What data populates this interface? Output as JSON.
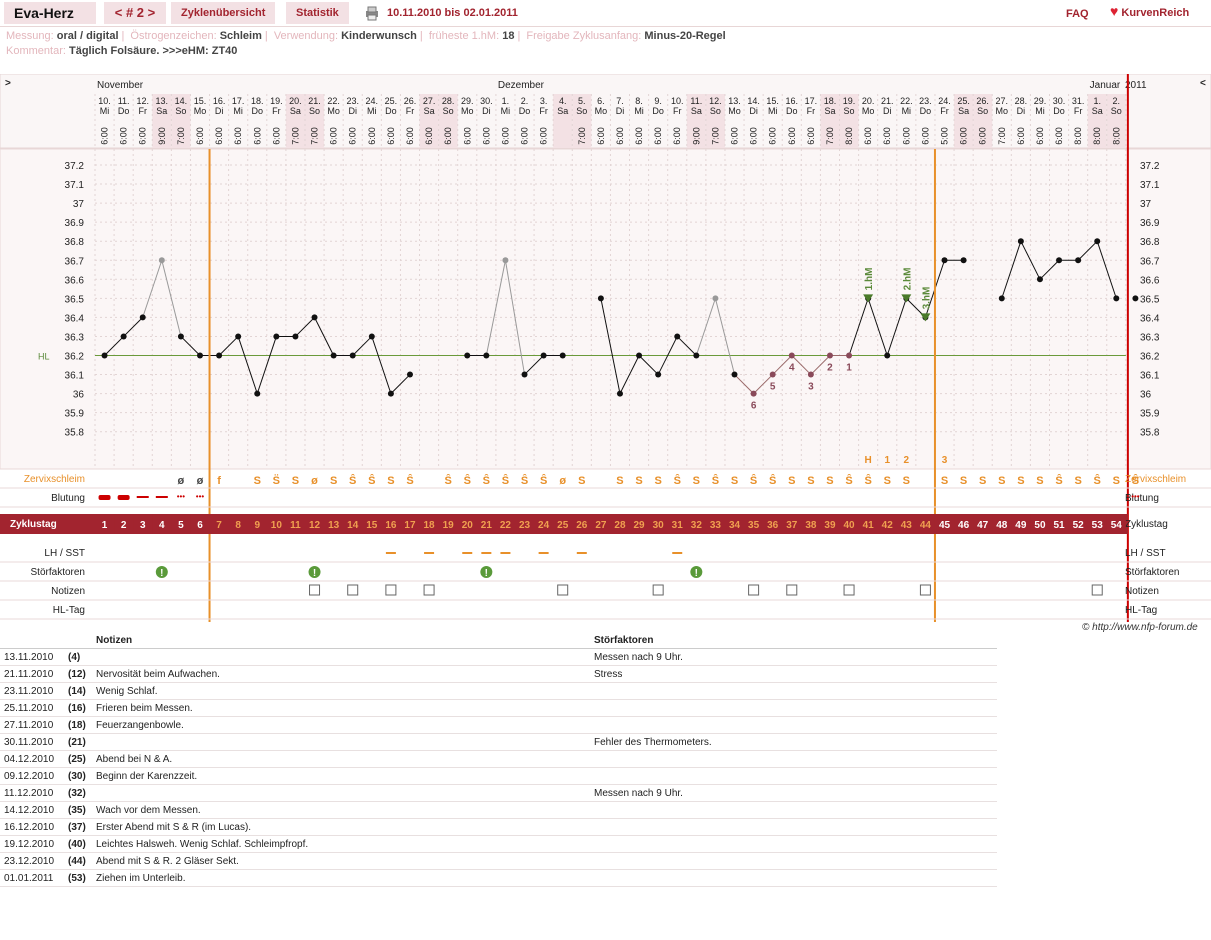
{
  "app": {
    "title": "Eva-Herz",
    "nav": "< # 2 >",
    "tab_overview": "Zyklenübersicht",
    "tab_stats": "Statistik",
    "date_range": "10.11.2010 bis 02.01.2011",
    "faq": "FAQ",
    "logo": "KurvenReich",
    "copyright": "© http://www.nfp-forum.de"
  },
  "meta1": [
    {
      "key": "Messung:",
      "val": "oral / digital"
    },
    {
      "key": "Östrogenzeichen:",
      "val": "Schleim"
    },
    {
      "key": "Verwendung:",
      "val": "Kinderwunsch"
    },
    {
      "key": "früheste 1.hM:",
      "val": "18"
    },
    {
      "key": "Freigabe Zyklusanfang:",
      "val": "Minus-20-Regel"
    }
  ],
  "meta2": {
    "key": "Kommentar:",
    "val": "Täglich Folsäure. >>>eHM: ZT40"
  },
  "chart_nav": {
    "left": ">",
    "right": "<",
    "year": "2011",
    "months": [
      {
        "label": "November",
        "day": 0
      },
      {
        "label": "Dezember",
        "day": 21
      },
      {
        "label": "Januar",
        "day": 52
      }
    ]
  },
  "days": [
    {
      "d": "10.",
      "w": "Mi",
      "t": "6:00"
    },
    {
      "d": "11.",
      "w": "Do",
      "t": "6:00"
    },
    {
      "d": "12.",
      "w": "Fr",
      "t": "6:00"
    },
    {
      "d": "13.",
      "w": "Sa",
      "t": "9:00",
      "we": 1
    },
    {
      "d": "14.",
      "w": "So",
      "t": "7:00",
      "we": 1
    },
    {
      "d": "15.",
      "w": "Mo",
      "t": "6:00"
    },
    {
      "d": "16.",
      "w": "Di",
      "t": "6:00"
    },
    {
      "d": "17.",
      "w": "Mi",
      "t": "6:00"
    },
    {
      "d": "18.",
      "w": "Do",
      "t": "6:00"
    },
    {
      "d": "19.",
      "w": "Fr",
      "t": "6:00"
    },
    {
      "d": "20.",
      "w": "Sa",
      "t": "7:00",
      "we": 1
    },
    {
      "d": "21.",
      "w": "So",
      "t": "7:00",
      "we": 1
    },
    {
      "d": "22.",
      "w": "Mo",
      "t": "6:00"
    },
    {
      "d": "23.",
      "w": "Di",
      "t": "6:00"
    },
    {
      "d": "24.",
      "w": "Mi",
      "t": "6:00"
    },
    {
      "d": "25.",
      "w": "Do",
      "t": "6:00"
    },
    {
      "d": "26.",
      "w": "Fr",
      "t": "6:00"
    },
    {
      "d": "27.",
      "w": "Sa",
      "t": "6:00",
      "we": 1
    },
    {
      "d": "28.",
      "w": "So",
      "t": "6:00",
      "we": 1
    },
    {
      "d": "29.",
      "w": "Mo",
      "t": "6:00"
    },
    {
      "d": "30.",
      "w": "Di",
      "t": "6:00"
    },
    {
      "d": "1.",
      "w": "Mi",
      "t": "6:00"
    },
    {
      "d": "2.",
      "w": "Do",
      "t": "6:00"
    },
    {
      "d": "3.",
      "w": "Fr",
      "t": "6:00"
    },
    {
      "d": "4.",
      "w": "Sa",
      "t": "",
      "we": 1
    },
    {
      "d": "5.",
      "w": "So",
      "t": "7:00",
      "we": 1
    },
    {
      "d": "6.",
      "w": "Mo",
      "t": "6:00"
    },
    {
      "d": "7.",
      "w": "Di",
      "t": "6:00"
    },
    {
      "d": "8.",
      "w": "Mi",
      "t": "6:00"
    },
    {
      "d": "9.",
      "w": "Do",
      "t": "6:00"
    },
    {
      "d": "10.",
      "w": "Fr",
      "t": "6:00"
    },
    {
      "d": "11.",
      "w": "Sa",
      "t": "9:00",
      "we": 1
    },
    {
      "d": "12.",
      "w": "So",
      "t": "7:00",
      "we": 1
    },
    {
      "d": "13.",
      "w": "Mo",
      "t": "6:00"
    },
    {
      "d": "14.",
      "w": "Di",
      "t": "6:00"
    },
    {
      "d": "15.",
      "w": "Mi",
      "t": "6:00"
    },
    {
      "d": "16.",
      "w": "Do",
      "t": "6:00"
    },
    {
      "d": "17.",
      "w": "Fr",
      "t": "6:00"
    },
    {
      "d": "18.",
      "w": "Sa",
      "t": "7:00",
      "we": 1
    },
    {
      "d": "19.",
      "w": "So",
      "t": "8:00",
      "we": 1
    },
    {
      "d": "20.",
      "w": "Mo",
      "t": "6:00"
    },
    {
      "d": "21.",
      "w": "Di",
      "t": "6:00"
    },
    {
      "d": "22.",
      "w": "Mi",
      "t": "6:00"
    },
    {
      "d": "23.",
      "w": "Do",
      "t": "6:00"
    },
    {
      "d": "24.",
      "w": "Fr",
      "t": "5:00"
    },
    {
      "d": "25.",
      "w": "Sa",
      "t": "6:00",
      "we": 1
    },
    {
      "d": "26.",
      "w": "So",
      "t": "6:00",
      "we": 1
    },
    {
      "d": "27.",
      "w": "Mo",
      "t": "7:00"
    },
    {
      "d": "28.",
      "w": "Di",
      "t": "6:00"
    },
    {
      "d": "29.",
      "w": "Mi",
      "t": "6:00"
    },
    {
      "d": "30.",
      "w": "Do",
      "t": "6:00"
    },
    {
      "d": "31.",
      "w": "Fr",
      "t": "8:00"
    },
    {
      "d": "1.",
      "w": "Sa",
      "t": "8:00",
      "we": 1
    },
    {
      "d": "2.",
      "w": "So",
      "t": "8:00",
      "we": 1
    }
  ],
  "chart_data": {
    "type": "line",
    "xlabel": "",
    "ylabel": "",
    "ylim": [
      35.7,
      37.3
    ],
    "yticks": [
      "37.2",
      "37.1",
      "37",
      "36.9",
      "36.8",
      "36.7",
      "36.6",
      "36.5",
      "36.4",
      "36.3",
      "36.2",
      "36.1",
      "36",
      "35.9",
      "35.8"
    ],
    "hl_label": "HL",
    "hl_value": 36.2,
    "temps": [
      36.2,
      36.3,
      36.4,
      36.7,
      36.3,
      36.2,
      36.2,
      36.3,
      36.0,
      36.3,
      36.3,
      36.4,
      36.2,
      36.2,
      36.3,
      36.0,
      36.1,
      null,
      null,
      36.2,
      36.2,
      36.7,
      36.1,
      36.2,
      36.2,
      null,
      36.5,
      36.0,
      36.2,
      36.1,
      36.3,
      36.2,
      36.5,
      36.1,
      36.0,
      36.1,
      36.2,
      36.1,
      36.2,
      36.2,
      36.5,
      36.2,
      36.5,
      36.4,
      36.7,
      36.7,
      null,
      36.5,
      36.8,
      36.6,
      36.7,
      36.7,
      36.8,
      36.5,
      36.5
    ],
    "excluded": [
      3,
      21,
      32
    ],
    "lower_nums": [
      {
        "i": 34,
        "n": "6"
      },
      {
        "i": 35,
        "n": "5"
      },
      {
        "i": 36,
        "n": "4"
      },
      {
        "i": 37,
        "n": "3"
      },
      {
        "i": 38,
        "n": "2"
      },
      {
        "i": 39,
        "n": "1"
      }
    ],
    "high_marks": [
      {
        "i": 40,
        "label": "1.hM"
      },
      {
        "i": 42,
        "label": "2.hM"
      },
      {
        "i": 43,
        "label": "3.hM"
      }
    ],
    "count_labels": [
      {
        "i": 40,
        "n": "H"
      },
      {
        "i": 41,
        "n": "1"
      },
      {
        "i": 42,
        "n": "2"
      },
      {
        "i": 44,
        "n": "3"
      }
    ]
  },
  "rows": {
    "cervix": "Zervixschleim",
    "bleeding": "Blutung",
    "cycle": "Zyklustag",
    "lh": "LH / SST",
    "stoer": "Störfaktoren",
    "notes": "Notizen",
    "hl": "HL-Tag"
  },
  "cervix": [
    "",
    "",
    "",
    "",
    "ø",
    "ø",
    "f",
    "",
    "S",
    "S̈",
    "S",
    "ø",
    "S",
    "Ŝ",
    "Ŝ",
    "S",
    "Ŝ",
    "",
    "Ŝ",
    "Ŝ",
    "Ŝ",
    "Ŝ",
    "Ŝ",
    "Ŝ",
    "ø",
    "S",
    "",
    "S",
    "S",
    "S",
    "Ŝ",
    "S",
    "Ŝ",
    "S",
    "Ŝ",
    "Ŝ",
    "S",
    "S",
    "S",
    "Ŝ",
    "Ŝ",
    "S",
    "S",
    "",
    "S",
    "S",
    "S",
    "S",
    "S",
    "S",
    "Ŝ",
    "S",
    "Ŝ",
    "S",
    "Ŝ"
  ],
  "bleeding_days": [
    0,
    1,
    2,
    3,
    4,
    5,
    54
  ],
  "lh_days": [
    15,
    17,
    19,
    20,
    21,
    23,
    25,
    30
  ],
  "stoer_days": [
    3,
    11,
    20,
    31
  ],
  "note_days": [
    11,
    13,
    15,
    17,
    24,
    29,
    34,
    36,
    39,
    43,
    52
  ],
  "notes_table": {
    "h_notes": "Notizen",
    "h_stoer": "Störfaktoren",
    "rows": [
      {
        "date": "13.11.2010",
        "ct": "(4)",
        "note": "",
        "stoer": "Messen nach 9 Uhr."
      },
      {
        "date": "21.11.2010",
        "ct": "(12)",
        "note": "Nervosität beim Aufwachen.",
        "stoer": "Stress"
      },
      {
        "date": "23.11.2010",
        "ct": "(14)",
        "note": "Wenig Schlaf.",
        "stoer": ""
      },
      {
        "date": "25.11.2010",
        "ct": "(16)",
        "note": "Frieren beim Messen.",
        "stoer": ""
      },
      {
        "date": "27.11.2010",
        "ct": "(18)",
        "note": "Feuerzangenbowle.",
        "stoer": ""
      },
      {
        "date": "30.11.2010",
        "ct": "(21)",
        "note": "",
        "stoer": "Fehler des Thermometers."
      },
      {
        "date": "04.12.2010",
        "ct": "(25)",
        "note": "Abend bei N & A.",
        "stoer": ""
      },
      {
        "date": "09.12.2010",
        "ct": "(30)",
        "note": "Beginn der Karenzzeit.",
        "stoer": ""
      },
      {
        "date": "11.12.2010",
        "ct": "(32)",
        "note": "",
        "stoer": "Messen nach 9 Uhr."
      },
      {
        "date": "14.12.2010",
        "ct": "(35)",
        "note": "Wach vor dem Messen.",
        "stoer": ""
      },
      {
        "date": "16.12.2010",
        "ct": "(37)",
        "note": "Erster Abend mit S & R (im Lucas).",
        "stoer": ""
      },
      {
        "date": "19.12.2010",
        "ct": "(40)",
        "note": "Leichtes Halsweh. Wenig Schlaf. Schleimpfropf.",
        "stoer": ""
      },
      {
        "date": "23.12.2010",
        "ct": "(44)",
        "note": "Abend mit S & R. 2 Gläser Sekt.",
        "stoer": ""
      },
      {
        "date": "01.01.2011",
        "ct": "(53)",
        "note": "Ziehen im Unterleib.",
        "stoer": ""
      }
    ]
  },
  "colors": {
    "accent": "#a2242f",
    "orange": "#e8902a",
    "green": "#5b8a3a",
    "pink": "#f5e6ea"
  }
}
